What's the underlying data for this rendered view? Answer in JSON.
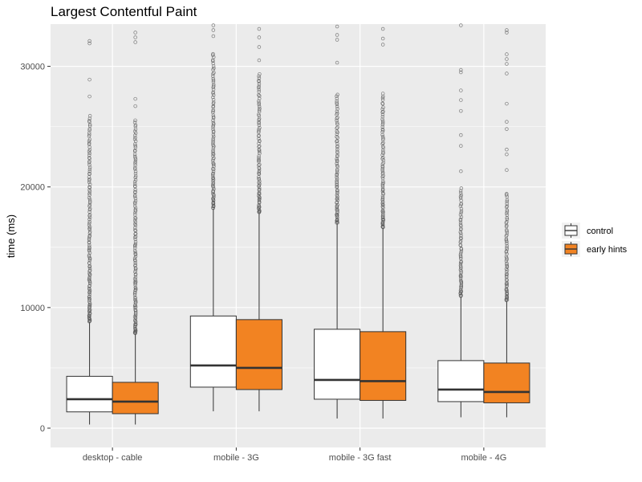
{
  "chart_data": {
    "type": "box",
    "title": "Largest Contentful Paint",
    "xlabel": "",
    "ylabel": "time (ms)",
    "ylim": [
      -1600,
      33500
    ],
    "yticks": [
      0,
      10000,
      20000,
      30000
    ],
    "grid": true,
    "legend_position": "right",
    "categories": [
      "desktop - cable",
      "mobile - 3G",
      "mobile - 3G fast",
      "mobile - 4G"
    ],
    "colors": {
      "control": "#ffffff",
      "early hints": "#f28322",
      "panel": "#ebebeb",
      "grid": "#ffffff",
      "box_stroke": "#333333"
    },
    "series": [
      {
        "name": "control",
        "boxes": [
          {
            "min": 300,
            "q1": 1350,
            "median": 2400,
            "q3": 4300,
            "max": 8800,
            "outliers_from": 8800,
            "outliers_to": 26000,
            "sparse_outliers": [
              27500,
              28900,
              31900,
              32100
            ]
          },
          {
            "min": 1400,
            "q1": 3400,
            "median": 5200,
            "q3": 9300,
            "max": 18200,
            "outliers_from": 18200,
            "outliers_to": 31200,
            "sparse_outliers": [
              32500,
              33000,
              33400
            ]
          },
          {
            "min": 800,
            "q1": 2400,
            "median": 4000,
            "q3": 8200,
            "max": 17000,
            "outliers_from": 17000,
            "outliers_to": 27800,
            "sparse_outliers": [
              30300,
              32200,
              32600,
              33300
            ]
          },
          {
            "min": 900,
            "q1": 2200,
            "median": 3200,
            "q3": 5600,
            "max": 10900,
            "outliers_from": 10900,
            "outliers_to": 20000,
            "sparse_outliers": [
              21300,
              23400,
              24300,
              26300,
              27200,
              28000,
              29500,
              29700,
              33400
            ]
          }
        ]
      },
      {
        "name": "early hints",
        "boxes": [
          {
            "min": 300,
            "q1": 1200,
            "median": 2200,
            "q3": 3800,
            "max": 7800,
            "outliers_from": 7800,
            "outliers_to": 25600,
            "sparse_outliers": [
              26700,
              27300,
              32000,
              32400,
              32800
            ]
          },
          {
            "min": 1400,
            "q1": 3200,
            "median": 5000,
            "q3": 9000,
            "max": 17800,
            "outliers_from": 17800,
            "outliers_to": 29500,
            "sparse_outliers": [
              30500,
              31600,
              32400,
              33100
            ]
          },
          {
            "min": 800,
            "q1": 2300,
            "median": 3900,
            "q3": 8000,
            "max": 16600,
            "outliers_from": 16600,
            "outliers_to": 27800,
            "sparse_outliers": [
              31800,
              32300,
              33100
            ]
          },
          {
            "min": 900,
            "q1": 2100,
            "median": 3000,
            "q3": 5400,
            "max": 10500,
            "outliers_from": 10500,
            "outliers_to": 19600,
            "sparse_outliers": [
              21400,
              22700,
              23100,
              24800,
              25400,
              26900,
              29400,
              30200,
              30600,
              31000,
              32800,
              33000
            ]
          }
        ]
      }
    ]
  }
}
